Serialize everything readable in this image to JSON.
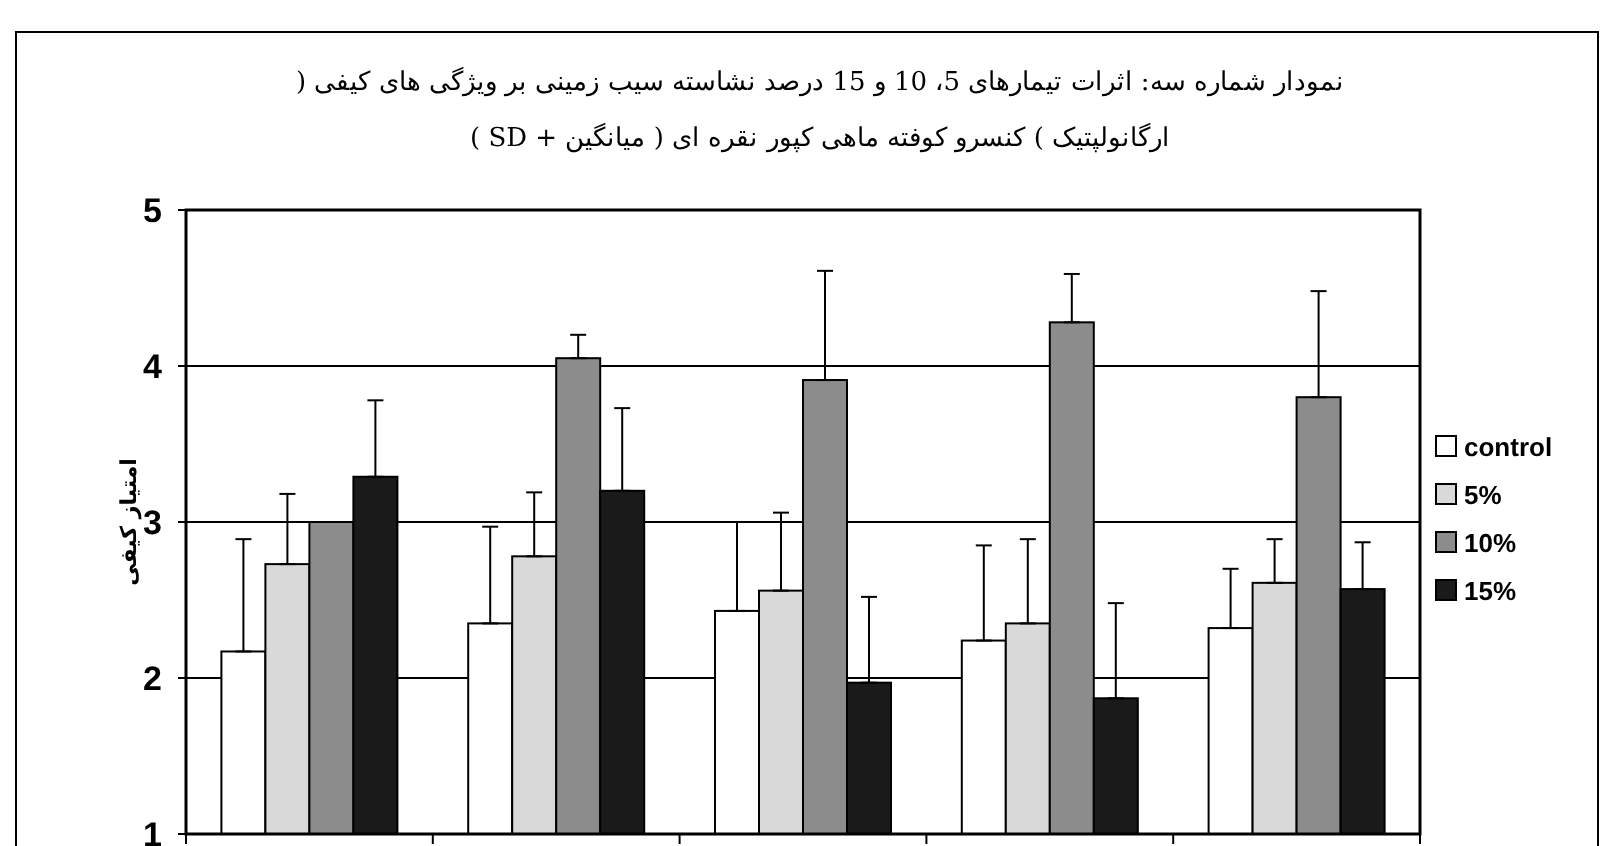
{
  "chart_data": {
    "type": "bar",
    "title": "نمودار شماره سه: اثرات تیمارهای 5، 10 و 15 درصد نشاسته سیب زمینی بر ویژگی های کیفی ( ارگانولپتیک ) کنسرو کوفته ماهی کپور نقره ای ( میانگین + SD )",
    "ylabel": "امتیاز کیفی",
    "categories": [
      null,
      null,
      null,
      null,
      null
    ],
    "series": [
      {
        "name": "control",
        "color": "#ffffff",
        "values": [
          2.17,
          2.35,
          2.43,
          2.24,
          2.32
        ],
        "errors": [
          [
            2.17,
            2.89
          ],
          [
            2.35,
            2.97
          ],
          [
            2.43,
            3.0
          ],
          [
            2.24,
            2.85
          ],
          [
            2.32,
            2.7
          ]
        ]
      },
      {
        "name": "5%",
        "color": "#d9d9d9",
        "values": [
          2.73,
          2.78,
          2.56,
          2.35,
          2.61
        ],
        "errors": [
          [
            2.73,
            3.18
          ],
          [
            2.78,
            3.19
          ],
          [
            2.56,
            3.06
          ],
          [
            2.35,
            2.89
          ],
          [
            2.61,
            2.89
          ]
        ]
      },
      {
        "name": "10%",
        "color": "#8c8c8c",
        "values": [
          3.0,
          4.05,
          3.91,
          4.28,
          3.8
        ],
        "errors": [
          null,
          [
            4.05,
            4.2
          ],
          [
            3.91,
            4.61
          ],
          [
            4.28,
            4.59
          ],
          [
            3.8,
            4.48
          ]
        ]
      },
      {
        "name": "15%",
        "color": "#1a1a1a",
        "values": [
          3.29,
          3.2,
          1.97,
          1.87,
          2.57
        ],
        "errors": [
          [
            3.29,
            3.78
          ],
          [
            3.2,
            3.73
          ],
          [
            1.97,
            2.52
          ],
          [
            1.87,
            2.48
          ],
          [
            2.57,
            2.87
          ]
        ]
      }
    ],
    "ylim": [
      1,
      5
    ],
    "yticks": [
      1,
      2,
      3,
      4,
      5
    ],
    "grid": "y",
    "legend": "right",
    "tick_labels": "y"
  }
}
